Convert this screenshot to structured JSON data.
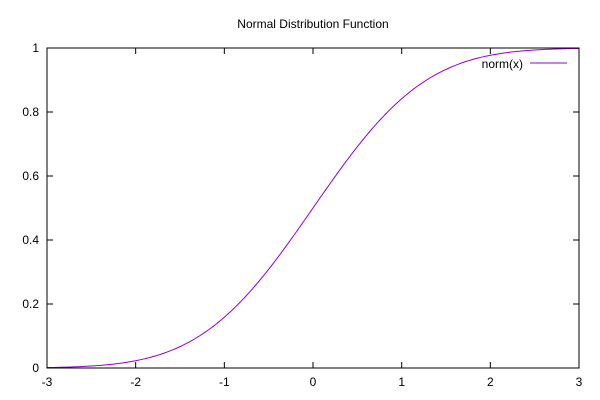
{
  "chart_data": {
    "type": "line",
    "title": "Normal Distribution Function",
    "xlabel": "",
    "ylabel": "",
    "xlim": [
      -3,
      3
    ],
    "ylim": [
      0,
      1
    ],
    "x_ticks": [
      -3,
      -2,
      -1,
      0,
      1,
      2,
      3
    ],
    "y_ticks": [
      0,
      0.2,
      0.4,
      0.6,
      0.8,
      1
    ],
    "x_tick_labels": [
      "-3",
      "-2",
      "-1",
      "0",
      "1",
      "2",
      "3"
    ],
    "y_tick_labels": [
      "0",
      "0.2",
      "0.4",
      "0.6",
      "0.8",
      "1"
    ],
    "grid": false,
    "legend_position": "top-right",
    "series": [
      {
        "name": "norm(x)",
        "color": "#9400d3",
        "x": [
          -3,
          -2.75,
          -2.5,
          -2.25,
          -2,
          -1.75,
          -1.5,
          -1.25,
          -1,
          -0.75,
          -0.5,
          -0.25,
          0,
          0.25,
          0.5,
          0.75,
          1,
          1.25,
          1.5,
          1.75,
          2,
          2.25,
          2.5,
          2.75,
          3
        ],
        "y": [
          0.0013,
          0.003,
          0.0062,
          0.0122,
          0.0228,
          0.0401,
          0.0668,
          0.1056,
          0.1587,
          0.2266,
          0.3085,
          0.4013,
          0.5,
          0.5987,
          0.6915,
          0.7734,
          0.8413,
          0.8944,
          0.9332,
          0.9599,
          0.9772,
          0.9878,
          0.9938,
          0.997,
          0.9987
        ]
      }
    ]
  }
}
